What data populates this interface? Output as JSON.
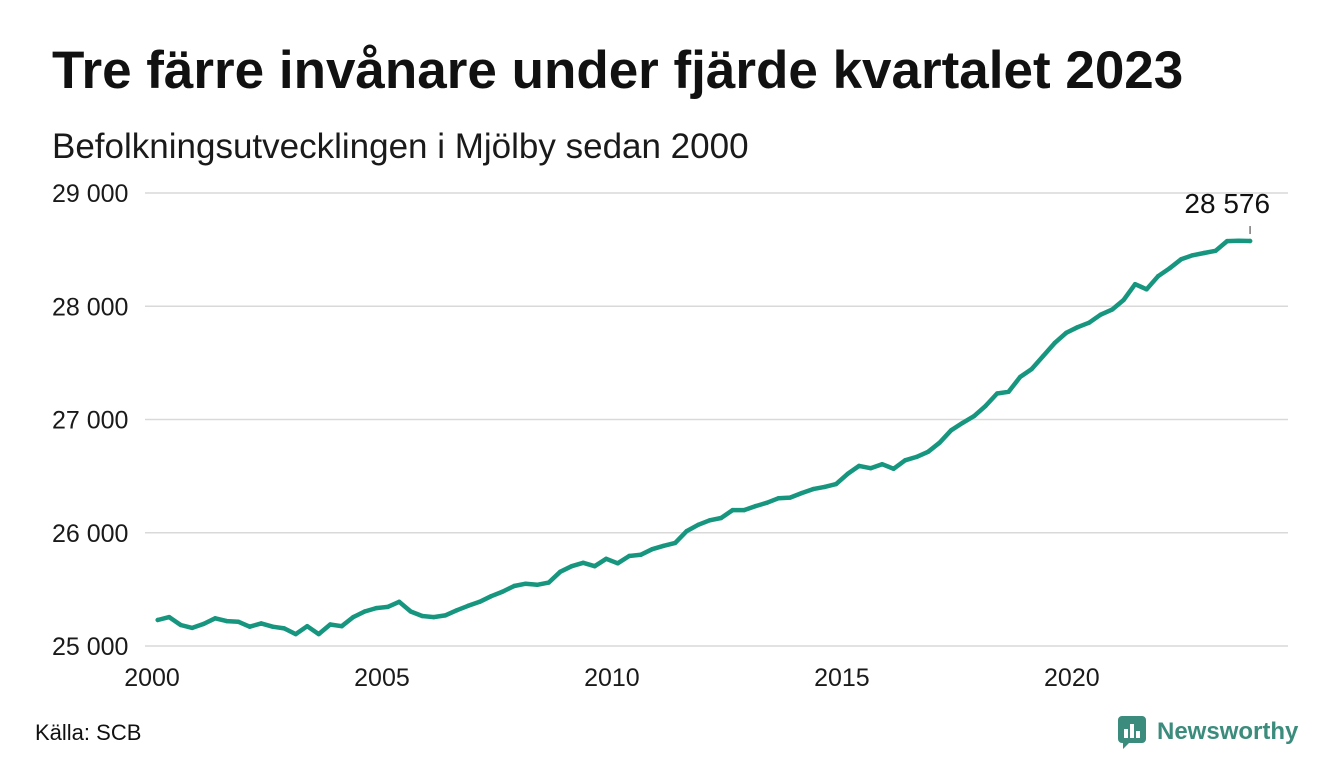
{
  "chart_data": {
    "type": "line",
    "title": "Tre färre invånare under fjärde kvartalet 2023",
    "subtitle": "Befolkningsutvecklingen i Mjölby sedan 2000",
    "xlabel": "",
    "ylabel": "",
    "xlim": [
      2000,
      2024.7
    ],
    "ylim": [
      25000,
      29000
    ],
    "grid": "horizontal",
    "legend": "none",
    "x_ticks": [
      {
        "value": 2000,
        "label": "2000"
      },
      {
        "value": 2005,
        "label": "2005"
      },
      {
        "value": 2010,
        "label": "2010"
      },
      {
        "value": 2015,
        "label": "2015"
      },
      {
        "value": 2020,
        "label": "2020"
      }
    ],
    "y_ticks": [
      {
        "value": 25000,
        "label": "25 000"
      },
      {
        "value": 26000,
        "label": "26 000"
      },
      {
        "value": 27000,
        "label": "27 000"
      },
      {
        "value": 28000,
        "label": "28 000"
      },
      {
        "value": 29000,
        "label": "29 000"
      }
    ],
    "x": [
      "2000-Q1",
      "2000-Q2",
      "2000-Q3",
      "2000-Q4",
      "2001-Q1",
      "2001-Q2",
      "2001-Q3",
      "2001-Q4",
      "2002-Q1",
      "2002-Q2",
      "2002-Q3",
      "2002-Q4",
      "2003-Q1",
      "2003-Q2",
      "2003-Q3",
      "2003-Q4",
      "2004-Q1",
      "2004-Q2",
      "2004-Q3",
      "2004-Q4",
      "2005-Q1",
      "2005-Q2",
      "2005-Q3",
      "2005-Q4",
      "2006-Q1",
      "2006-Q2",
      "2006-Q3",
      "2006-Q4",
      "2007-Q1",
      "2007-Q2",
      "2007-Q3",
      "2007-Q4",
      "2008-Q1",
      "2008-Q2",
      "2008-Q3",
      "2008-Q4",
      "2009-Q1",
      "2009-Q2",
      "2009-Q3",
      "2009-Q4",
      "2010-Q1",
      "2010-Q2",
      "2010-Q3",
      "2010-Q4",
      "2011-Q1",
      "2011-Q2",
      "2011-Q3",
      "2011-Q4",
      "2012-Q1",
      "2012-Q2",
      "2012-Q3",
      "2012-Q4",
      "2013-Q1",
      "2013-Q2",
      "2013-Q3",
      "2013-Q4",
      "2014-Q1",
      "2014-Q2",
      "2014-Q3",
      "2014-Q4",
      "2015-Q1",
      "2015-Q2",
      "2015-Q3",
      "2015-Q4",
      "2016-Q1",
      "2016-Q2",
      "2016-Q3",
      "2016-Q4",
      "2017-Q1",
      "2017-Q2",
      "2017-Q3",
      "2017-Q4",
      "2018-Q1",
      "2018-Q2",
      "2018-Q3",
      "2018-Q4",
      "2019-Q1",
      "2019-Q2",
      "2019-Q3",
      "2019-Q4",
      "2020-Q1",
      "2020-Q2",
      "2020-Q3",
      "2020-Q4",
      "2021-Q1",
      "2021-Q2",
      "2021-Q3",
      "2021-Q4",
      "2022-Q1",
      "2022-Q2",
      "2022-Q3",
      "2022-Q4",
      "2023-Q1",
      "2023-Q2",
      "2023-Q3",
      "2023-Q4"
    ],
    "series": [
      {
        "color": "#17967f",
        "values": [
          25230,
          25255,
          25185,
          25160,
          25195,
          25245,
          25220,
          25215,
          25170,
          25200,
          25170,
          25155,
          25105,
          25175,
          25105,
          25190,
          25175,
          25255,
          25305,
          25335,
          25345,
          25390,
          25305,
          25265,
          25255,
          25270,
          25315,
          25355,
          25390,
          25440,
          25480,
          25530,
          25550,
          25540,
          25560,
          25655,
          25705,
          25735,
          25705,
          25770,
          25730,
          25795,
          25805,
          25855,
          25885,
          25910,
          26015,
          26070,
          26110,
          26130,
          26200,
          26200,
          26235,
          26265,
          26305,
          26310,
          26350,
          26385,
          26405,
          26430,
          26520,
          26590,
          26570,
          26605,
          26565,
          26640,
          26670,
          26715,
          26795,
          26905,
          26970,
          27030,
          27120,
          27230,
          27245,
          27375,
          27445,
          27560,
          27675,
          27765,
          27815,
          27855,
          27925,
          27970,
          28055,
          28195,
          28150,
          28265,
          28335,
          28415,
          28450,
          28470,
          28490,
          28575,
          28579,
          28576
        ]
      }
    ],
    "annotations": [
      {
        "text": "28 576",
        "x": "2023-Q4",
        "y": 28576
      }
    ]
  },
  "footer": {
    "source": "Källa: SCB"
  },
  "logo": {
    "text": "Newsworthy",
    "icon": "newsworthy-logo-icon",
    "color": "#3b8c7c"
  }
}
